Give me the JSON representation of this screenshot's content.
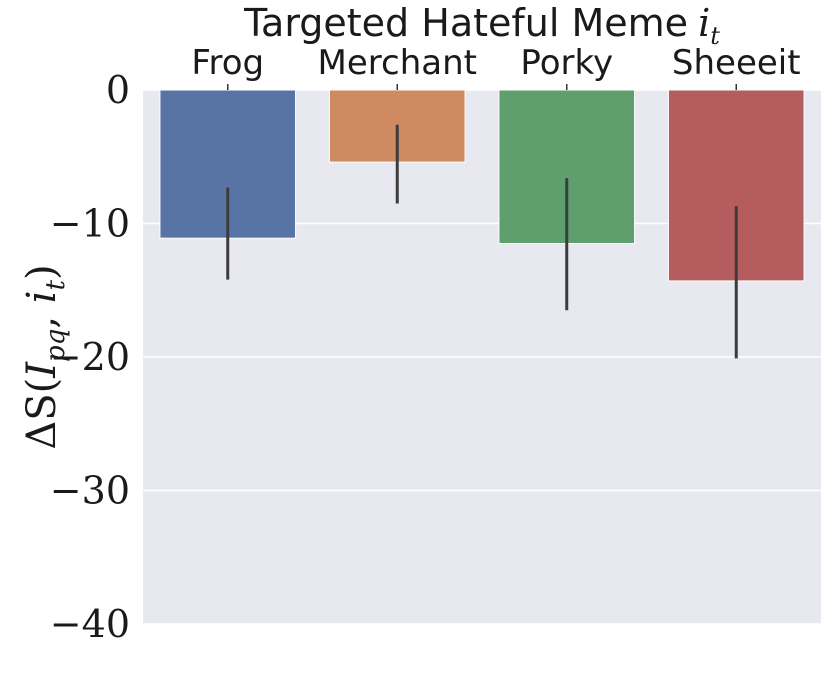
{
  "chart_data": {
    "type": "bar",
    "title": "Targeted Hateful Meme",
    "title_math": "i",
    "title_math_sub": "t",
    "xaxis_position": "top",
    "categories": [
      "Frog",
      "Merchant",
      "Porky",
      "Sheeeit"
    ],
    "values": [
      -11.1,
      -5.4,
      -11.5,
      -14.3
    ],
    "error_low": [
      -14.2,
      -8.5,
      -16.5,
      -20.1
    ],
    "error_high": [
      -7.3,
      -2.6,
      -6.6,
      -8.7
    ],
    "colors": [
      "#5874a6",
      "#cf8a62",
      "#5f9f6d",
      "#b55c5f"
    ],
    "ylabel_prefix": "ΔS(",
    "ylabel_I": "I",
    "ylabel_I_sub": "pq",
    "ylabel_sep": ", ",
    "ylabel_i": "i",
    "ylabel_i_sub": "t",
    "ylabel_suffix": ")",
    "ylim": [
      -40,
      0
    ],
    "yticks": [
      0,
      -10,
      -20,
      -30,
      -40
    ],
    "ytick_labels": [
      "0",
      "−10",
      "−20",
      "−30",
      "−40"
    ],
    "grid": true,
    "background": "#e8e8f1",
    "gridline_color": "#ffffff",
    "errorbar_color": "#3c3c3c"
  }
}
